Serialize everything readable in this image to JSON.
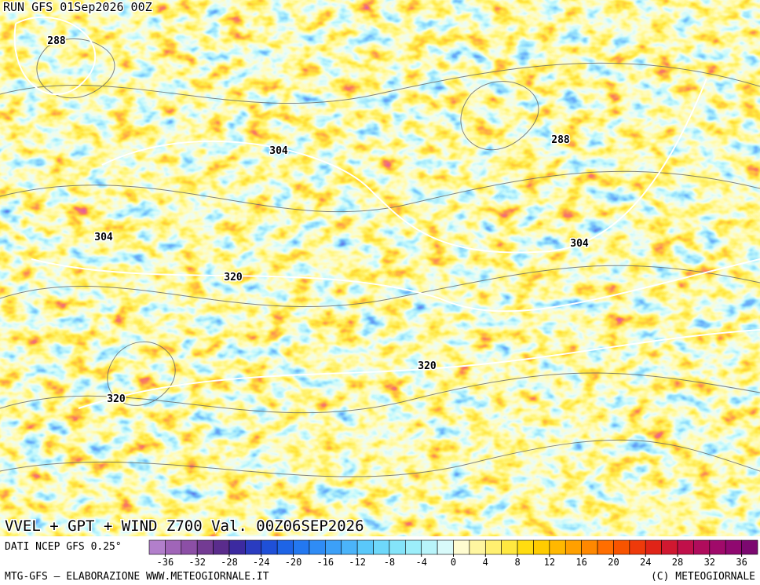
{
  "header": {
    "run": "RUN GFS 01Sep2026 00Z"
  },
  "contour_labels": [
    288,
    304,
    288,
    304,
    304,
    320,
    320,
    320
  ],
  "title": "VVEL + GPT + WIND Z700 Val. 00Z06SEP2026",
  "source": "DATI NCEP GFS 0.25°",
  "colorbar": {
    "xlim": [
      -38,
      38
    ],
    "ticks": [
      -36,
      -32,
      -28,
      -24,
      -20,
      -16,
      -12,
      -8,
      -4,
      0,
      4,
      8,
      12,
      16,
      20,
      24,
      28,
      32,
      36
    ],
    "colors": [
      "#b27fcb",
      "#a065b8",
      "#8c4fa6",
      "#733b93",
      "#5a2c8c",
      "#3c2aa0",
      "#2a3cc0",
      "#1f50d8",
      "#1e64e6",
      "#2378f0",
      "#2f8cf5",
      "#3ca0f8",
      "#4bb4fa",
      "#5ac8fa",
      "#6ed8fa",
      "#84e4fa",
      "#9ceefa",
      "#b8f4fa",
      "#d8fafa",
      "#fffcd0",
      "#fff6a0",
      "#fff070",
      "#ffe840",
      "#ffdc10",
      "#ffcc00",
      "#ffb800",
      "#ffa000",
      "#ff8800",
      "#ff6e00",
      "#f85400",
      "#ee3a0a",
      "#e02418",
      "#d01830",
      "#c0104a",
      "#b00c5c",
      "#a00a6a",
      "#900870",
      "#7c0870"
    ]
  },
  "footer": {
    "left": "MTG-GFS — ELABORAZIONE WWW.METEOGIORNALE.IT",
    "right": "(C) METEOGIORNALE"
  }
}
